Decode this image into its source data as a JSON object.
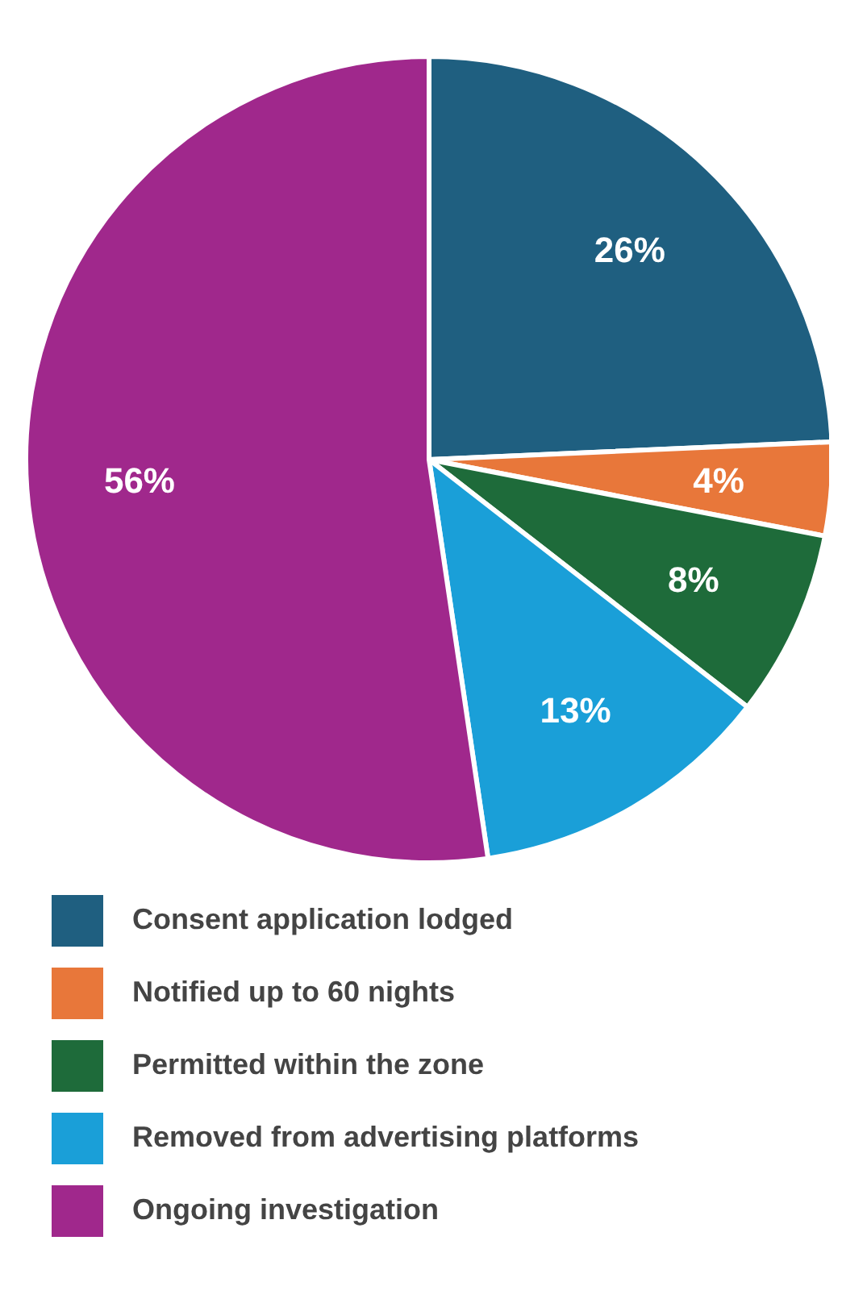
{
  "chart_data": {
    "type": "pie",
    "categories": [
      "Consent application lodged",
      "Notified up to 60 nights",
      "Permitted within the zone",
      "Removed from advertising platforms",
      "Ongoing investigation"
    ],
    "values": [
      26,
      4,
      8,
      13,
      56
    ],
    "colors": [
      "#1f5f80",
      "#e8773a",
      "#1e6b3a",
      "#1a9fd8",
      "#a0288c"
    ],
    "value_labels": [
      "26%",
      "4%",
      "8%",
      "13%",
      "56%"
    ],
    "legend": "bottom"
  }
}
